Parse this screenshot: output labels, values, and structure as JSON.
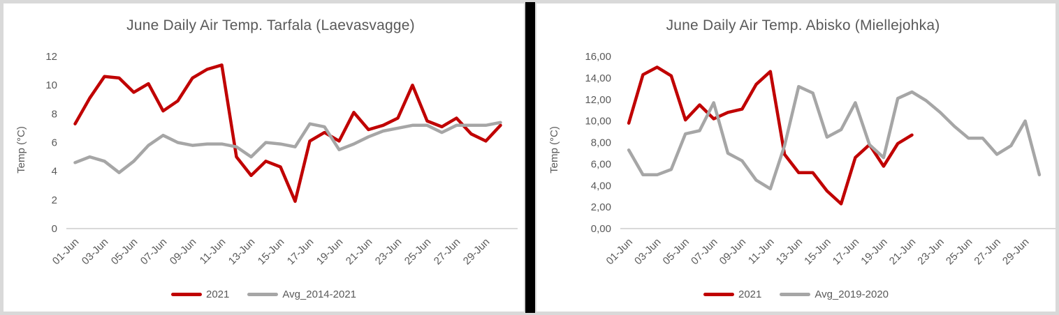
{
  "window": {
    "background": "#ffffff",
    "outer_border_color": "#d9d9d9",
    "divider_color": "#000000"
  },
  "chart_data": [
    {
      "type": "line",
      "title": "June Daily Air Temp. Tarfala (Laevasvagge)",
      "xlabel": "",
      "ylabel": "Temp (°C)",
      "ylim": [
        0,
        12
      ],
      "y_ticks": [
        "0",
        "2",
        "4",
        "6",
        "8",
        "10",
        "12"
      ],
      "grid": "off",
      "legend_position": "bottom",
      "n_points": 30,
      "tick_days": [
        1,
        3,
        5,
        7,
        9,
        11,
        13,
        15,
        17,
        19,
        21,
        23,
        25,
        27,
        29
      ],
      "x_tick_labels": [
        "01-Jun",
        "03-Jun",
        "05-Jun",
        "07-Jun",
        "09-Jun",
        "11-Jun",
        "13-Jun",
        "15-Jun",
        "17-Jun",
        "19-Jun",
        "21-Jun",
        "23-Jun",
        "25-Jun",
        "27-Jun",
        "29-Jun"
      ],
      "series": [
        {
          "name": "2021",
          "color": "#C00000",
          "values": [
            7.3,
            9.1,
            10.6,
            10.5,
            9.5,
            10.1,
            8.2,
            8.9,
            10.5,
            11.1,
            11.4,
            5.0,
            3.7,
            4.7,
            4.3,
            1.9,
            6.1,
            6.7,
            6.1,
            8.1,
            6.9,
            7.2,
            7.7,
            10.0,
            7.5,
            7.1,
            7.7,
            6.6,
            6.1,
            7.2
          ]
        },
        {
          "name": "Avg_2014-2021",
          "color": "#A6A6A6",
          "values": [
            4.6,
            5.0,
            4.7,
            3.9,
            4.7,
            5.8,
            6.5,
            6.0,
            5.8,
            5.9,
            5.9,
            5.7,
            5.0,
            6.0,
            5.9,
            5.7,
            7.3,
            7.1,
            5.5,
            5.9,
            6.4,
            6.8,
            7.0,
            7.2,
            7.2,
            6.7,
            7.2,
            7.2,
            7.2,
            7.4
          ]
        }
      ]
    },
    {
      "type": "line",
      "title": "June Daily Air Temp. Abisko (Miellejohka)",
      "xlabel": "",
      "ylabel": "Temp (°C)",
      "ylim": [
        0,
        16
      ],
      "y_ticks": [
        "0,00",
        "2,00",
        "4,00",
        "6,00",
        "8,00",
        "10,00",
        "12,00",
        "14,00",
        "16,00"
      ],
      "grid": "off",
      "legend_position": "bottom",
      "n_points": 30,
      "tick_days": [
        1,
        3,
        5,
        7,
        9,
        11,
        13,
        15,
        17,
        19,
        21,
        23,
        25,
        27,
        29
      ],
      "x_tick_labels": [
        "01-Jun",
        "03-Jun",
        "05-Jun",
        "07-Jun",
        "09-Jun",
        "11-Jun",
        "13-Jun",
        "15-Jun",
        "17-Jun",
        "19-Jun",
        "21-Jun",
        "23-Jun",
        "25-Jun",
        "27-Jun",
        "29-Jun"
      ],
      "series": [
        {
          "name": "2021",
          "color": "#C00000",
          "values": [
            9.8,
            14.3,
            15.0,
            14.2,
            10.1,
            11.5,
            10.2,
            10.8,
            11.1,
            13.4,
            14.6,
            6.9,
            5.2,
            5.2,
            3.5,
            2.3,
            6.6,
            7.8,
            5.8,
            7.9,
            8.7
          ]
        },
        {
          "name": "Avg_2019-2020",
          "color": "#A6A6A6",
          "values": [
            7.3,
            5.0,
            5.0,
            5.5,
            8.8,
            9.1,
            11.7,
            7.0,
            6.3,
            4.5,
            3.7,
            7.7,
            13.2,
            12.6,
            8.5,
            9.2,
            11.7,
            7.8,
            6.6,
            12.1,
            12.7,
            11.9,
            10.8,
            9.5,
            8.4,
            8.4,
            6.9,
            7.7,
            10.0,
            5.0
          ]
        }
      ]
    }
  ]
}
